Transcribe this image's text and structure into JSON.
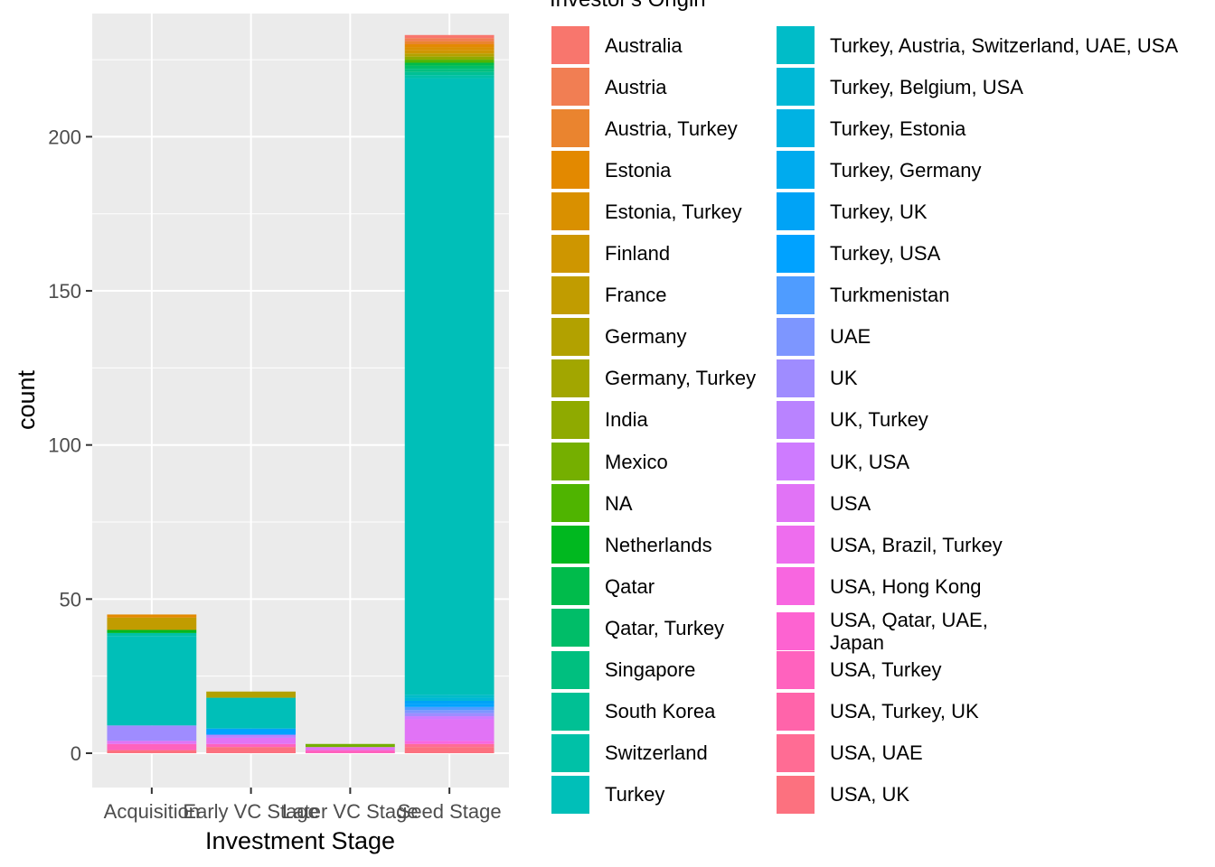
{
  "chart_data": {
    "type": "bar",
    "stacked": true,
    "xlabel": "Investment Stage",
    "ylabel": "count",
    "ylim": [
      -11,
      238
    ],
    "yticks": [
      0,
      50,
      100,
      150,
      200
    ],
    "grid": true,
    "legend_title": "Investor's Origin",
    "legend_position": "right",
    "categories": [
      "Acquisition",
      "Early VC Stage",
      "Later VC Stage",
      "Seed Stage"
    ],
    "legend": [
      {
        "label": "Australia",
        "color": "#F8766D"
      },
      {
        "label": "Austria",
        "color": "#F17E53"
      },
      {
        "label": "Austria, Turkey",
        "color": "#EA842F"
      },
      {
        "label": "Estonia",
        "color": "#E38900"
      },
      {
        "label": "Estonia, Turkey",
        "color": "#D99000"
      },
      {
        "label": "Finland",
        "color": "#CE9600"
      },
      {
        "label": "France",
        "color": "#C19C00"
      },
      {
        "label": "Germany",
        "color": "#B2A100"
      },
      {
        "label": "Germany, Turkey",
        "color": "#A2A600"
      },
      {
        "label": "India",
        "color": "#8FAA00"
      },
      {
        "label": "Mexico",
        "color": "#75AF00"
      },
      {
        "label": "NA",
        "color": "#4FB400"
      },
      {
        "label": "Netherlands",
        "color": "#00B81F"
      },
      {
        "label": "Qatar",
        "color": "#00BB4B"
      },
      {
        "label": "Qatar, Turkey",
        "color": "#00BD68"
      },
      {
        "label": "Singapore",
        "color": "#00BF7F"
      },
      {
        "label": "South Korea",
        "color": "#00C094"
      },
      {
        "label": "Switzerland",
        "color": "#00C1A7"
      },
      {
        "label": "Turkey",
        "color": "#00BFB8"
      },
      {
        "label": "Turkey, Austria, Switzerland, UAE, USA",
        "color": "#00BCC8"
      },
      {
        "label": "Turkey, Belgium, USA",
        "color": "#00B8D6"
      },
      {
        "label": "Turkey, Estonia",
        "color": "#00B2E3"
      },
      {
        "label": "Turkey, Germany",
        "color": "#00ABEE"
      },
      {
        "label": "Turkey, UK",
        "color": "#00A3F6"
      },
      {
        "label": "Turkey, USA",
        "color": "#00A2FF"
      },
      {
        "label": "Turkmenistan",
        "color": "#4F9CFF"
      },
      {
        "label": "UAE",
        "color": "#7D96FF"
      },
      {
        "label": "UK",
        "color": "#9F8CFF"
      },
      {
        "label": "UK, Turkey",
        "color": "#B983FF"
      },
      {
        "label": "UK, USA",
        "color": "#CE7BFF"
      },
      {
        "label": "USA",
        "color": "#E173F6"
      },
      {
        "label": "USA, Brazil, Turkey",
        "color": "#EE6DEE"
      },
      {
        "label": "USA, Hong Kong",
        "color": "#F866E0"
      },
      {
        "label": "USA, Qatar, UAE,\nJapan",
        "color": "#FD63D1"
      },
      {
        "label": "USA, Turkey",
        "color": "#FF62BE"
      },
      {
        "label": "USA, Turkey, UK",
        "color": "#FF64AA"
      },
      {
        "label": "USA, UAE",
        "color": "#FF6C94"
      },
      {
        "label": "USA, UK",
        "color": "#FC717F"
      }
    ],
    "stacks": {
      "Acquisition": [
        {
          "origin": "Estonia",
          "value": 1
        },
        {
          "origin": "France",
          "value": 4
        },
        {
          "origin": "Netherlands",
          "value": 1
        },
        {
          "origin": "Switzerland",
          "value": 1
        },
        {
          "origin": "Turkey",
          "value": 29
        },
        {
          "origin": "UK",
          "value": 5
        },
        {
          "origin": "USA",
          "value": 1
        },
        {
          "origin": "USA, Turkey",
          "value": 2
        },
        {
          "origin": "USA, UK",
          "value": 1
        }
      ],
      "Early VC Stage": [
        {
          "origin": "Germany",
          "value": 2
        },
        {
          "origin": "Turkey",
          "value": 10
        },
        {
          "origin": "Turkey, USA",
          "value": 2
        },
        {
          "origin": "UK, Turkey",
          "value": 1
        },
        {
          "origin": "USA",
          "value": 2
        },
        {
          "origin": "USA, Turkey",
          "value": 1
        },
        {
          "origin": "USA, UK",
          "value": 2
        }
      ],
      "Later VC Stage": [
        {
          "origin": "Mexico",
          "value": 1
        },
        {
          "origin": "USA",
          "value": 1
        },
        {
          "origin": "USA, Turkey",
          "value": 1
        }
      ],
      "Seed Stage": [
        {
          "origin": "Australia",
          "value": 1
        },
        {
          "origin": "Austria",
          "value": 1
        },
        {
          "origin": "Austria, Turkey",
          "value": 1
        },
        {
          "origin": "Estonia",
          "value": 1
        },
        {
          "origin": "Estonia, Turkey",
          "value": 1
        },
        {
          "origin": "Finland",
          "value": 1
        },
        {
          "origin": "Germany",
          "value": 1
        },
        {
          "origin": "India",
          "value": 1
        },
        {
          "origin": "NA",
          "value": 1
        },
        {
          "origin": "Qatar",
          "value": 1
        },
        {
          "origin": "Qatar, Turkey",
          "value": 1
        },
        {
          "origin": "Singapore",
          "value": 1
        },
        {
          "origin": "South Korea",
          "value": 1
        },
        {
          "origin": "Switzerland",
          "value": 1
        },
        {
          "origin": "Turkey",
          "value": 200
        },
        {
          "origin": "Turkey, Austria, Switzerland, UAE, USA",
          "value": 1
        },
        {
          "origin": "Turkey, Belgium, USA",
          "value": 1
        },
        {
          "origin": "Turkey, UK",
          "value": 1
        },
        {
          "origin": "Turkey, USA",
          "value": 1
        },
        {
          "origin": "Turkmenistan",
          "value": 1
        },
        {
          "origin": "UAE",
          "value": 1
        },
        {
          "origin": "UK",
          "value": 1
        },
        {
          "origin": "UK, USA",
          "value": 1
        },
        {
          "origin": "USA",
          "value": 7
        },
        {
          "origin": "USA, Hong Kong",
          "value": 1
        },
        {
          "origin": "USA, UAE",
          "value": 1
        },
        {
          "origin": "USA, UK",
          "value": 2
        }
      ]
    }
  }
}
